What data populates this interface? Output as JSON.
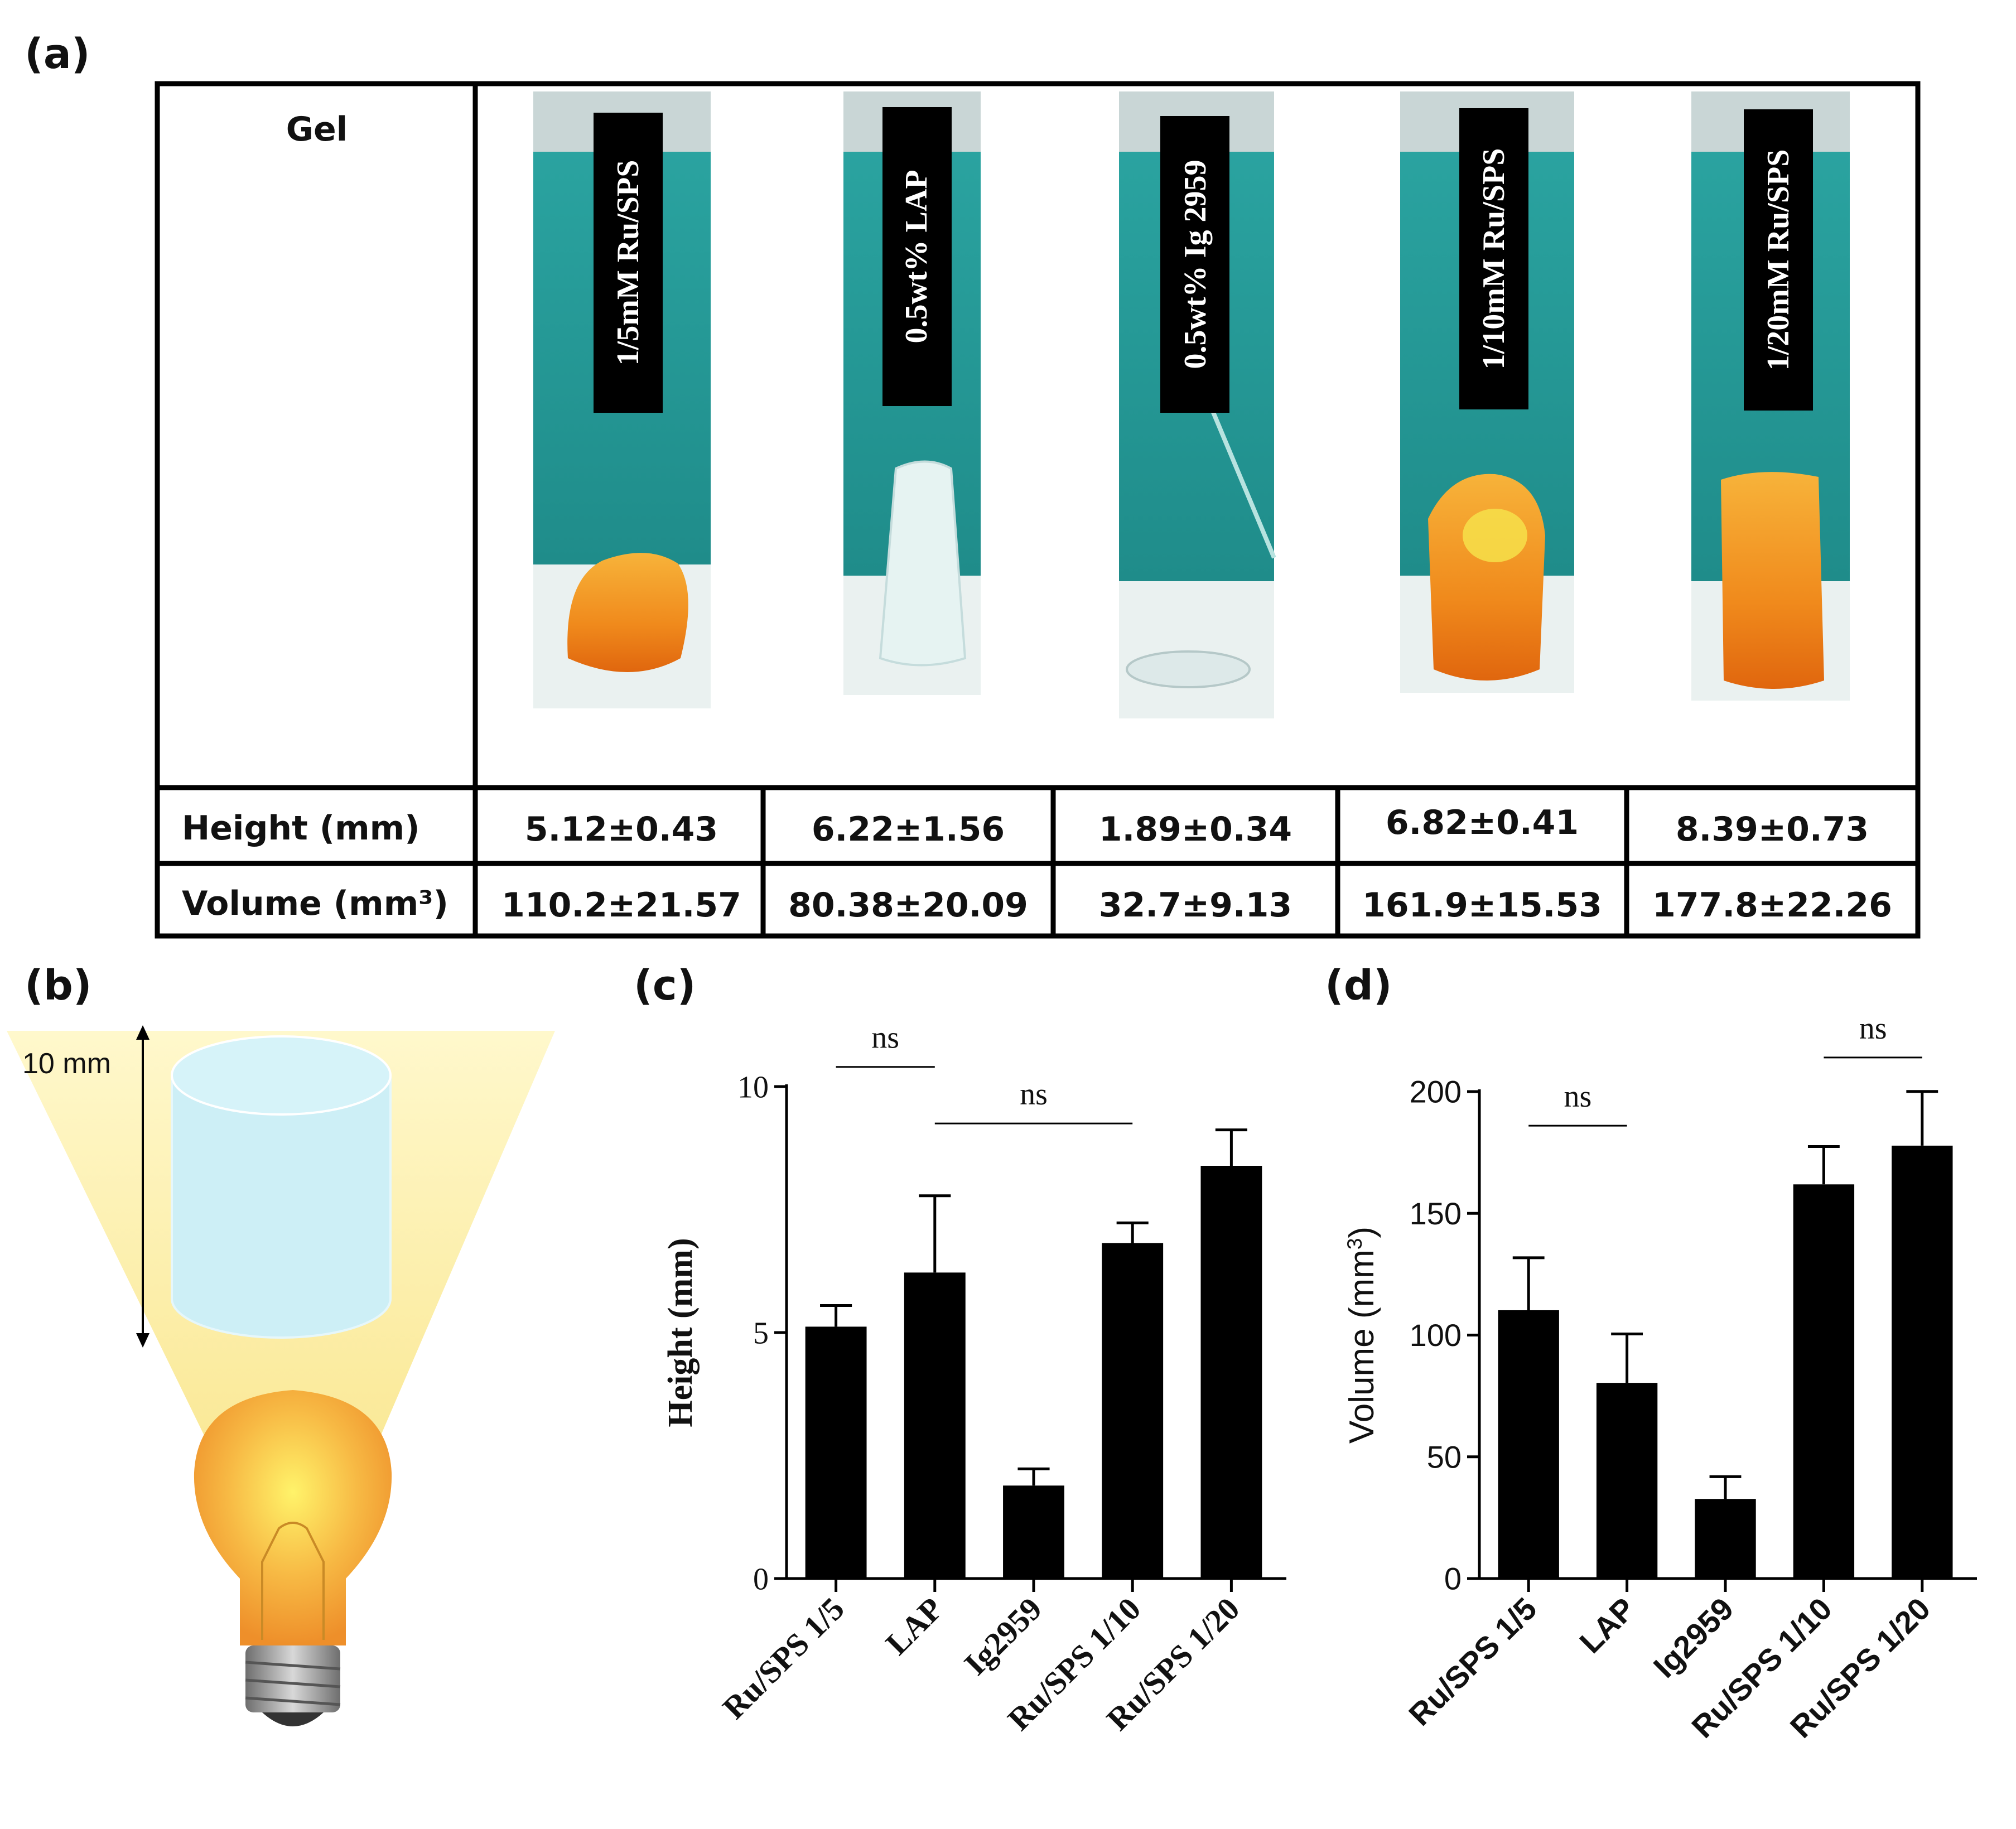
{
  "panel_a": {
    "label": "(a)",
    "header_col": "Gel",
    "photos": [
      {
        "label": "1/5mM Ru/SPS",
        "gel_color": "#f08a1c",
        "shape": "lump"
      },
      {
        "label": "0.5wt% LAP",
        "gel_color": "#dff0f0",
        "shape": "cone"
      },
      {
        "label": "0.5wt% Ig 2959",
        "gel_color": "#e4eeee",
        "shape": "disc"
      },
      {
        "label": "1/10mM Ru/SPS",
        "gel_color": "#f08a1c",
        "shape": "cylinder"
      },
      {
        "label": "1/20mM Ru/SPS",
        "gel_color": "#ee8a1e",
        "shape": "tall"
      }
    ],
    "row_height": {
      "label": "Height (mm)",
      "values": [
        "5.12±0.43",
        "6.22±1.56",
        "1.89±0.34",
        "6.82±0.41",
        "8.39±0.73"
      ]
    },
    "row_volume": {
      "label": "Volume (mm³)",
      "values": [
        "110.2±21.57",
        "80.38±20.09",
        "32.7±9.13",
        "161.9±15.53",
        "177.8±22.26"
      ]
    }
  },
  "panel_b": {
    "label": "(b)",
    "dimension": "10 mm",
    "colors": {
      "light": "#fff6c2",
      "cylinder": "#cdeff6",
      "bulb": "#f6a93a"
    }
  },
  "chart_data": [
    {
      "panel": "(c)",
      "type": "bar",
      "categories": [
        "Ru/SPS 1/5",
        "LAP",
        "Ig2959",
        "Ru/SPS 1/10",
        "Ru/SPS 1/20"
      ],
      "values": [
        5.12,
        6.22,
        1.89,
        6.82,
        8.39
      ],
      "errors": [
        0.43,
        1.56,
        0.34,
        0.41,
        0.73
      ],
      "ylabel": "Height (mm)",
      "xlabel": "",
      "ylim": [
        0,
        10
      ],
      "yticks": [
        0,
        5,
        10
      ],
      "ytick_labels": [
        "0",
        "5",
        "10"
      ],
      "bar_color": "#000000",
      "significance": [
        {
          "from": 0,
          "to": 1,
          "text": "ns",
          "y_value": 10.4
        },
        {
          "from": 1,
          "to": 3,
          "text": "ns",
          "y_value": 9.25
        }
      ]
    },
    {
      "panel": "(d)",
      "type": "bar",
      "categories": [
        "Ru/SPS 1/5",
        "LAP",
        "Ig2959",
        "Ru/SPS 1/10",
        "Ru/SPS 1/20"
      ],
      "values": [
        110.2,
        80.38,
        32.7,
        161.9,
        177.8
      ],
      "errors": [
        21.57,
        20.09,
        9.13,
        15.53,
        22.26
      ],
      "ylabel": "Volume (mm3)",
      "xlabel": "",
      "ylim": [
        0,
        200
      ],
      "yticks": [
        0,
        50,
        100,
        150,
        200
      ],
      "ytick_labels": [
        "0",
        "50",
        "100",
        "150",
        "200"
      ],
      "bar_color": "#000000",
      "significance": [
        {
          "from": 0,
          "to": 1,
          "text": "ns",
          "y_value": 186
        },
        {
          "from": 3,
          "to": 4,
          "text": "ns",
          "y_value": 214
        }
      ]
    }
  ]
}
